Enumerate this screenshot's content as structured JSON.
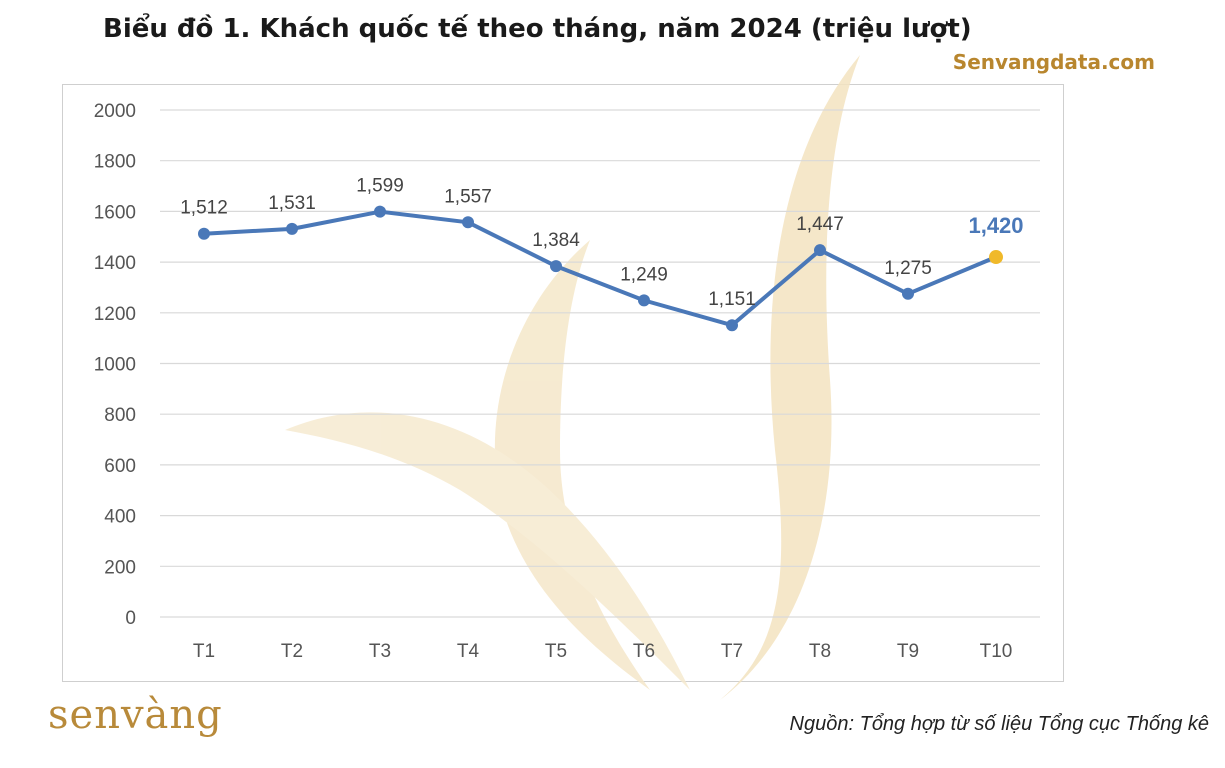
{
  "header": {
    "title": "Biểu đồ 1. Khách quốc tế theo tháng, năm 2024 (triệu lượt)",
    "brand": "Senvangdata.com"
  },
  "footer": {
    "logo_text": "senvàng",
    "source": "Nguồn: Tổng hợp từ số liệu Tổng cục Thống kê"
  },
  "colors": {
    "line": "#4a78b8",
    "highlight_point": "#f0b92a",
    "highlight_label": "#4a78b8",
    "grid": "#d9d9d9",
    "watermark": "#f1dfb8"
  },
  "chart_data": {
    "type": "line",
    "title": "Biểu đồ 1. Khách quốc tế theo tháng, năm 2024 (triệu lượt)",
    "xlabel": "",
    "ylabel": "",
    "categories": [
      "T1",
      "T2",
      "T3",
      "T4",
      "T5",
      "T6",
      "T7",
      "T8",
      "T9",
      "T10"
    ],
    "series": [
      {
        "values": [
          1512,
          1531,
          1599,
          1557,
          1384,
          1249,
          1151,
          1447,
          1275,
          1420
        ]
      }
    ],
    "data_labels": [
      "1,512",
      "1,531",
      "1,599",
      "1,557",
      "1,384",
      "1,249",
      "1,151",
      "1,447",
      "1,275",
      "1,420"
    ],
    "highlight_index": 9,
    "ylim": [
      0,
      2000
    ],
    "yticks": [
      0,
      200,
      400,
      600,
      800,
      1000,
      1200,
      1400,
      1600,
      1800,
      2000
    ],
    "grid": true,
    "legend": "none"
  }
}
